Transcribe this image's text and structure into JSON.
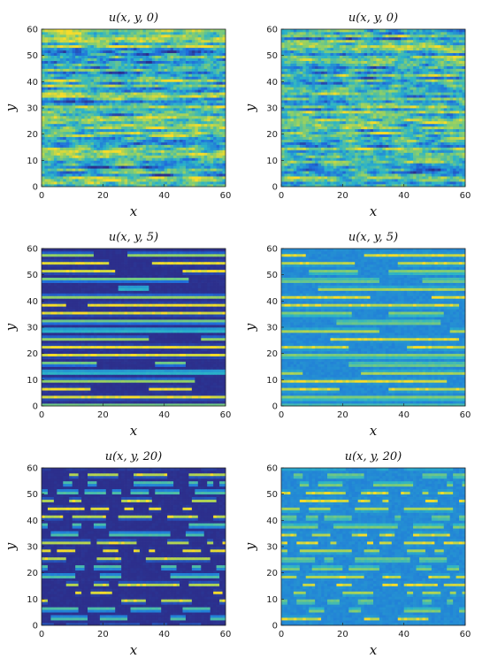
{
  "colors": {
    "low": "#2c2f8c",
    "mid_low": "#1f78d8",
    "mid": "#2ab3c9",
    "mid_high": "#8bcf6a",
    "high": "#f7dc2a",
    "background": "#ffffff",
    "axis": "#222222"
  },
  "chart_data": [
    {
      "type": "heatmap",
      "title": "u(x, y, 0)",
      "xlabel": "x",
      "ylabel": "y",
      "xlim": [
        0,
        60
      ],
      "ylim": [
        0,
        60
      ],
      "xticks": [
        "0",
        "20",
        "40",
        "60"
      ],
      "yticks": [
        "0",
        "10",
        "20",
        "30",
        "40",
        "50",
        "60"
      ],
      "pattern": "horizontal streaks, low amplitude noise",
      "style": "noise",
      "seed": 1
    },
    {
      "type": "heatmap",
      "title": "u(x, y, 0)",
      "xlabel": "x",
      "ylabel": "y",
      "xlim": [
        0,
        60
      ],
      "ylim": [
        0,
        60
      ],
      "xticks": [
        "0",
        "20",
        "40",
        "60"
      ],
      "yticks": [
        "0",
        "10",
        "20",
        "30",
        "40",
        "50",
        "60"
      ],
      "pattern": "horizontal streaks, low amplitude noise",
      "style": "noise",
      "seed": 2
    },
    {
      "type": "heatmap",
      "title": "u(x, y, 5)",
      "xlabel": "x",
      "ylabel": "y",
      "xlim": [
        0,
        60
      ],
      "ylim": [
        0,
        60
      ],
      "xticks": [
        "0",
        "20",
        "40",
        "60"
      ],
      "yticks": [
        "0",
        "10",
        "20",
        "30",
        "40",
        "50",
        "60"
      ],
      "pattern": "horizontal stripes with breaks",
      "style": "stripes_sharp",
      "seed": 3
    },
    {
      "type": "heatmap",
      "title": "u(x, y, 5)",
      "xlabel": "x",
      "ylabel": "y",
      "xlim": [
        0,
        60
      ],
      "ylim": [
        0,
        60
      ],
      "xticks": [
        "0",
        "20",
        "40",
        "60"
      ],
      "yticks": [
        "0",
        "10",
        "20",
        "30",
        "40",
        "50",
        "60"
      ],
      "pattern": "horizontal stripes, smooth",
      "style": "stripes_smooth",
      "seed": 4
    },
    {
      "type": "heatmap",
      "title": "u(x, y, 20)",
      "xlabel": "x",
      "ylabel": "y",
      "xlim": [
        0,
        60
      ],
      "ylim": [
        0,
        60
      ],
      "xticks": [
        "0",
        "20",
        "40",
        "60"
      ],
      "yticks": [
        "0",
        "10",
        "20",
        "30",
        "40",
        "50",
        "60"
      ],
      "pattern": "broken stripes and spots",
      "style": "spots_sharp",
      "seed": 5
    },
    {
      "type": "heatmap",
      "title": "u(x, y, 20)",
      "xlabel": "x",
      "ylabel": "y",
      "xlim": [
        0,
        60
      ],
      "ylim": [
        0,
        60
      ],
      "xticks": [
        "0",
        "20",
        "40",
        "60"
      ],
      "yticks": [
        "0",
        "10",
        "20",
        "30",
        "40",
        "50",
        "60"
      ],
      "pattern": "broken stripes and spots, smooth",
      "style": "spots_smooth",
      "seed": 6
    }
  ]
}
